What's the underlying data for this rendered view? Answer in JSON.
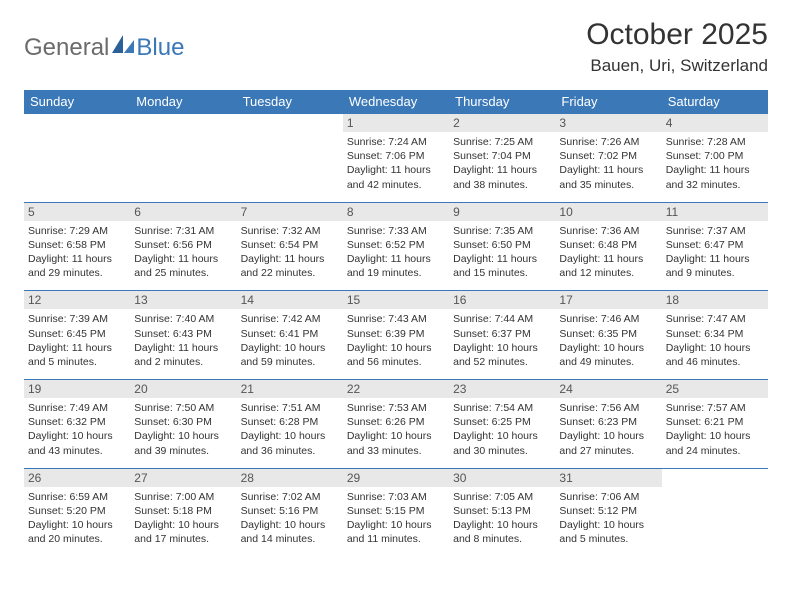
{
  "logo": {
    "part1": "General",
    "part2": "Blue"
  },
  "title": "October 2025",
  "location": "Bauen, Uri, Switzerland",
  "colors": {
    "header_bg": "#3a78b8",
    "header_text": "#ffffff",
    "daynum_bg": "#e8e8e8",
    "border": "#3a78b8",
    "text": "#333333",
    "logo_gray": "#6b6b6b"
  },
  "daynames": [
    "Sunday",
    "Monday",
    "Tuesday",
    "Wednesday",
    "Thursday",
    "Friday",
    "Saturday"
  ],
  "weeks": [
    [
      {},
      {},
      {},
      {
        "n": "1",
        "sr": "7:24 AM",
        "ss": "7:06 PM",
        "dl": "11 hours and 42 minutes."
      },
      {
        "n": "2",
        "sr": "7:25 AM",
        "ss": "7:04 PM",
        "dl": "11 hours and 38 minutes."
      },
      {
        "n": "3",
        "sr": "7:26 AM",
        "ss": "7:02 PM",
        "dl": "11 hours and 35 minutes."
      },
      {
        "n": "4",
        "sr": "7:28 AM",
        "ss": "7:00 PM",
        "dl": "11 hours and 32 minutes."
      }
    ],
    [
      {
        "n": "5",
        "sr": "7:29 AM",
        "ss": "6:58 PM",
        "dl": "11 hours and 29 minutes."
      },
      {
        "n": "6",
        "sr": "7:31 AM",
        "ss": "6:56 PM",
        "dl": "11 hours and 25 minutes."
      },
      {
        "n": "7",
        "sr": "7:32 AM",
        "ss": "6:54 PM",
        "dl": "11 hours and 22 minutes."
      },
      {
        "n": "8",
        "sr": "7:33 AM",
        "ss": "6:52 PM",
        "dl": "11 hours and 19 minutes."
      },
      {
        "n": "9",
        "sr": "7:35 AM",
        "ss": "6:50 PM",
        "dl": "11 hours and 15 minutes."
      },
      {
        "n": "10",
        "sr": "7:36 AM",
        "ss": "6:48 PM",
        "dl": "11 hours and 12 minutes."
      },
      {
        "n": "11",
        "sr": "7:37 AM",
        "ss": "6:47 PM",
        "dl": "11 hours and 9 minutes."
      }
    ],
    [
      {
        "n": "12",
        "sr": "7:39 AM",
        "ss": "6:45 PM",
        "dl": "11 hours and 5 minutes."
      },
      {
        "n": "13",
        "sr": "7:40 AM",
        "ss": "6:43 PM",
        "dl": "11 hours and 2 minutes."
      },
      {
        "n": "14",
        "sr": "7:42 AM",
        "ss": "6:41 PM",
        "dl": "10 hours and 59 minutes."
      },
      {
        "n": "15",
        "sr": "7:43 AM",
        "ss": "6:39 PM",
        "dl": "10 hours and 56 minutes."
      },
      {
        "n": "16",
        "sr": "7:44 AM",
        "ss": "6:37 PM",
        "dl": "10 hours and 52 minutes."
      },
      {
        "n": "17",
        "sr": "7:46 AM",
        "ss": "6:35 PM",
        "dl": "10 hours and 49 minutes."
      },
      {
        "n": "18",
        "sr": "7:47 AM",
        "ss": "6:34 PM",
        "dl": "10 hours and 46 minutes."
      }
    ],
    [
      {
        "n": "19",
        "sr": "7:49 AM",
        "ss": "6:32 PM",
        "dl": "10 hours and 43 minutes."
      },
      {
        "n": "20",
        "sr": "7:50 AM",
        "ss": "6:30 PM",
        "dl": "10 hours and 39 minutes."
      },
      {
        "n": "21",
        "sr": "7:51 AM",
        "ss": "6:28 PM",
        "dl": "10 hours and 36 minutes."
      },
      {
        "n": "22",
        "sr": "7:53 AM",
        "ss": "6:26 PM",
        "dl": "10 hours and 33 minutes."
      },
      {
        "n": "23",
        "sr": "7:54 AM",
        "ss": "6:25 PM",
        "dl": "10 hours and 30 minutes."
      },
      {
        "n": "24",
        "sr": "7:56 AM",
        "ss": "6:23 PM",
        "dl": "10 hours and 27 minutes."
      },
      {
        "n": "25",
        "sr": "7:57 AM",
        "ss": "6:21 PM",
        "dl": "10 hours and 24 minutes."
      }
    ],
    [
      {
        "n": "26",
        "sr": "6:59 AM",
        "ss": "5:20 PM",
        "dl": "10 hours and 20 minutes."
      },
      {
        "n": "27",
        "sr": "7:00 AM",
        "ss": "5:18 PM",
        "dl": "10 hours and 17 minutes."
      },
      {
        "n": "28",
        "sr": "7:02 AM",
        "ss": "5:16 PM",
        "dl": "10 hours and 14 minutes."
      },
      {
        "n": "29",
        "sr": "7:03 AM",
        "ss": "5:15 PM",
        "dl": "10 hours and 11 minutes."
      },
      {
        "n": "30",
        "sr": "7:05 AM",
        "ss": "5:13 PM",
        "dl": "10 hours and 8 minutes."
      },
      {
        "n": "31",
        "sr": "7:06 AM",
        "ss": "5:12 PM",
        "dl": "10 hours and 5 minutes."
      },
      {}
    ]
  ],
  "labels": {
    "sunrise": "Sunrise: ",
    "sunset": "Sunset: ",
    "daylight": "Daylight: "
  }
}
